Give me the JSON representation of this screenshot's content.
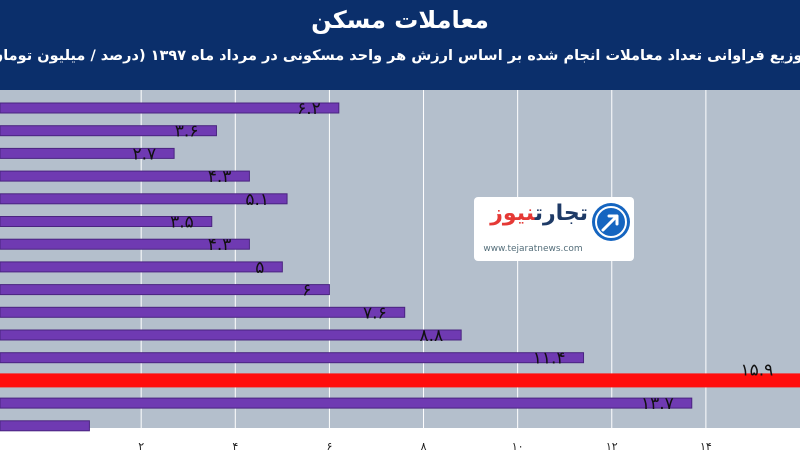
{
  "header": {
    "title": "معاملات مسکن",
    "subtitle": "توزیع فراوانی تعداد معاملات انجام شده بر اساس ارزش هر واحد مسکونی در مرداد ماه ۱۳۹۷ (درصد / میلیون تومان)"
  },
  "logo": {
    "name_part1": "تجارت",
    "name_part2": "نیوز",
    "url": "www.tejaratnews.com"
  },
  "colors": {
    "header_bg": "#0b2f6b",
    "plot_bg": "#b4bfcc",
    "bar": "#6f3ab2",
    "bar_border": "#4a2480",
    "highlight": "#ff0d0d"
  },
  "chart_data": {
    "type": "bar",
    "orientation": "horizontal",
    "values": [
      6.2,
      3.6,
      2.7,
      4.3,
      5.1,
      3.5,
      4.3,
      5,
      6,
      7.6,
      8.8,
      11.4,
      15.9,
      13.7,
      0.9
    ],
    "data_labels": [
      "۶.۲",
      "۳.۶",
      "۲.۷",
      "۴.۳",
      "۵.۱",
      "۳.۵",
      "۴.۳",
      "۵",
      "۶",
      "۷.۶",
      "۸.۸",
      "۱۱.۴",
      "۱۵.۹",
      "۱۳.۷",
      ""
    ],
    "highlight_index": 12,
    "xlim": [
      -1,
      16
    ],
    "xticks": [
      2,
      4,
      6,
      8,
      10,
      12,
      14
    ],
    "xtick_labels": [
      "۲",
      "۴",
      "۶",
      "۸",
      "۱۰",
      "۱۲",
      "۱۴"
    ],
    "grid": true
  }
}
